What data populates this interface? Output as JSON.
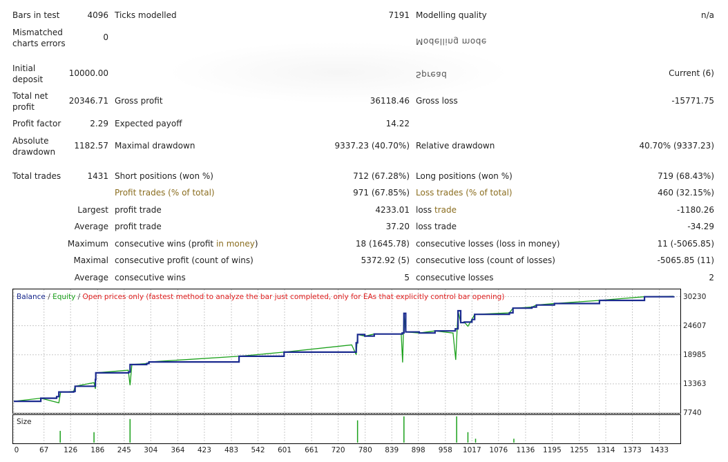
{
  "stats": {
    "bars_in_test_label": "Bars in test",
    "bars_in_test_value": "4096",
    "ticks_modelled_label": "Ticks modelled",
    "ticks_modelled_value": "7191",
    "modelling_quality_label": "Modelling quality",
    "modelling_quality_value": "n/a",
    "mismatched_label": "Mismatched charts errors",
    "mismatched_value": "0",
    "mirrored_text_1": "Modelling mode",
    "initial_deposit_label": "Initial deposit",
    "initial_deposit_value": "10000.00",
    "mirrored_text_2": "Spread",
    "spread_value": "Current (6)",
    "total_net_profit_label": "Total net profit",
    "total_net_profit_value": "20346.71",
    "gross_profit_label": "Gross profit",
    "gross_profit_value": "36118.46",
    "gross_loss_label": "Gross loss",
    "gross_loss_value": "-15771.75",
    "profit_factor_label": "Profit factor",
    "profit_factor_value": "2.29",
    "expected_payoff_label": "Expected payoff",
    "expected_payoff_value": "14.22",
    "absolute_drawdown_label": "Absolute drawdown",
    "absolute_drawdown_value": "1182.57",
    "maximal_drawdown_label": "Maximal drawdown",
    "maximal_drawdown_value": "9337.23 (40.70%)",
    "relative_drawdown_label": "Relative drawdown",
    "relative_drawdown_value": "40.70% (9337.23)",
    "total_trades_label": "Total trades",
    "total_trades_value": "1431",
    "short_positions_label": "Short positions (won %)",
    "short_positions_value": "712 (67.28%)",
    "long_positions_label": "Long positions (won %)",
    "long_positions_value": "719 (68.43%)",
    "profit_trades_label_a": "Profit trades (",
    "profit_trades_label_b": "% of total",
    "profit_trades_label_c": ")",
    "profit_trades_value": "971 (67.85%)",
    "loss_trades_label_a": "Loss",
    "loss_trades_label_b": " trades (% of total)",
    "loss_trades_value": "460 (32.15%)",
    "largest_label": "Largest",
    "largest_profit_label": "profit trade",
    "largest_profit_value": "4233.01",
    "largest_loss_label_a": "loss ",
    "largest_loss_label_b": "trade",
    "largest_loss_value": "-1180.26",
    "average_label": "Average",
    "average_profit_label": "profit trade",
    "average_profit_value": "37.20",
    "average_loss_label": "loss trade",
    "average_loss_value": "-34.29",
    "maximum_label": "Maximum",
    "max_consec_wins_label_a": "consecutive wins (profit ",
    "max_consec_wins_label_b": "in money",
    "max_consec_wins_label_c": ")",
    "max_consec_wins_value": "18 (1645.78)",
    "max_consec_losses_label": "consecutive losses (loss in money)",
    "max_consec_losses_value": "11 (-5065.85)",
    "maximal_label": "Maximal",
    "maximal_consec_profit_label": "consecutive profit (count of wins)",
    "maximal_consec_profit_value": "5372.92 (5)",
    "maximal_consec_loss_label": "consecutive loss (count of losses)",
    "maximal_consec_loss_value": "-5065.85 (11)",
    "average2_label": "Average",
    "avg_consec_wins_label": "consecutive wins",
    "avg_consec_wins_value": "5",
    "avg_consec_losses_label": "consecutive losses",
    "avg_consec_losses_value": "2"
  },
  "chart_data": {
    "type": "line",
    "legend": {
      "balance": "Balance",
      "sep1": " / ",
      "equity": "Equity",
      "sep2": " / ",
      "mode": "Open prices only (fastest method to analyze the bar just completed, only for EAs that explicitly control bar opening)"
    },
    "colors": {
      "balance": "#1a2a8f",
      "equity": "#1aa01a",
      "mode": "#e02020",
      "grid": "#c8c8c8"
    },
    "y_ticks": [
      "30230",
      "24607",
      "18985",
      "13363",
      "7740"
    ],
    "x_ticks": [
      "0",
      "67",
      "126",
      "186",
      "245",
      "304",
      "364",
      "423",
      "483",
      "542",
      "601",
      "661",
      "720",
      "780",
      "839",
      "898",
      "958",
      "1017",
      "1076",
      "1136",
      "1195",
      "1255",
      "1314",
      "1373",
      "1433"
    ],
    "ylim": [
      7740,
      31500
    ],
    "xlim": [
      0,
      1478
    ],
    "grid": true,
    "series": [
      {
        "name": "Balance",
        "points": [
          [
            0,
            10000
          ],
          [
            60,
            10600
          ],
          [
            95,
            10900
          ],
          [
            100,
            11800
          ],
          [
            133,
            11900
          ],
          [
            136,
            12900
          ],
          [
            181,
            14200
          ],
          [
            182,
            15500
          ],
          [
            255,
            15650
          ],
          [
            258,
            17100
          ],
          [
            295,
            17300
          ],
          [
            300,
            17600
          ],
          [
            500,
            18700
          ],
          [
            600,
            19500
          ],
          [
            760,
            21300
          ],
          [
            763,
            22900
          ],
          [
            779,
            22600
          ],
          [
            800,
            23000
          ],
          [
            862,
            23200
          ],
          [
            866,
            27000
          ],
          [
            870,
            23400
          ],
          [
            900,
            23200
          ],
          [
            935,
            23600
          ],
          [
            980,
            24000
          ],
          [
            986,
            27500
          ],
          [
            992,
            25200
          ],
          [
            1000,
            25300
          ],
          [
            1017,
            25800
          ],
          [
            1023,
            26800
          ],
          [
            1100,
            27100
          ],
          [
            1108,
            28000
          ],
          [
            1150,
            28200
          ],
          [
            1160,
            28600
          ],
          [
            1200,
            28900
          ],
          [
            1300,
            29500
          ],
          [
            1400,
            30200
          ],
          [
            1465,
            30300
          ]
        ]
      },
      {
        "name": "Equity",
        "points": [
          [
            0,
            10000
          ],
          [
            60,
            10600
          ],
          [
            100,
            9700
          ],
          [
            104,
            11800
          ],
          [
            133,
            11900
          ],
          [
            136,
            12900
          ],
          [
            178,
            13600
          ],
          [
            181,
            12400
          ],
          [
            182,
            15500
          ],
          [
            254,
            16000
          ],
          [
            258,
            13100
          ],
          [
            262,
            17100
          ],
          [
            296,
            17300
          ],
          [
            300,
            17600
          ],
          [
            500,
            18700
          ],
          [
            600,
            19500
          ],
          [
            750,
            20900
          ],
          [
            760,
            19000
          ],
          [
            763,
            22900
          ],
          [
            779,
            22600
          ],
          [
            800,
            23000
          ],
          [
            860,
            23000
          ],
          [
            863,
            17500
          ],
          [
            866,
            27000
          ],
          [
            870,
            23400
          ],
          [
            900,
            23200
          ],
          [
            935,
            23600
          ],
          [
            975,
            23200
          ],
          [
            981,
            18000
          ],
          [
            986,
            27500
          ],
          [
            992,
            25200
          ],
          [
            1000,
            25300
          ],
          [
            1008,
            24500
          ],
          [
            1017,
            25800
          ],
          [
            1023,
            26800
          ],
          [
            1100,
            27100
          ],
          [
            1108,
            28000
          ],
          [
            1150,
            28200
          ],
          [
            1160,
            28600
          ],
          [
            1200,
            28900
          ],
          [
            1300,
            29500
          ],
          [
            1400,
            30200
          ],
          [
            1465,
            30300
          ]
        ]
      }
    ],
    "size_bars": [
      [
        103,
        0.45
      ],
      [
        178,
        0.4
      ],
      [
        258,
        0.9
      ],
      [
        763,
        0.85
      ],
      [
        866,
        1.0
      ],
      [
        983,
        1.0
      ],
      [
        1008,
        0.4
      ],
      [
        1025,
        0.15
      ],
      [
        1110,
        0.15
      ]
    ],
    "size_label": "Size"
  }
}
